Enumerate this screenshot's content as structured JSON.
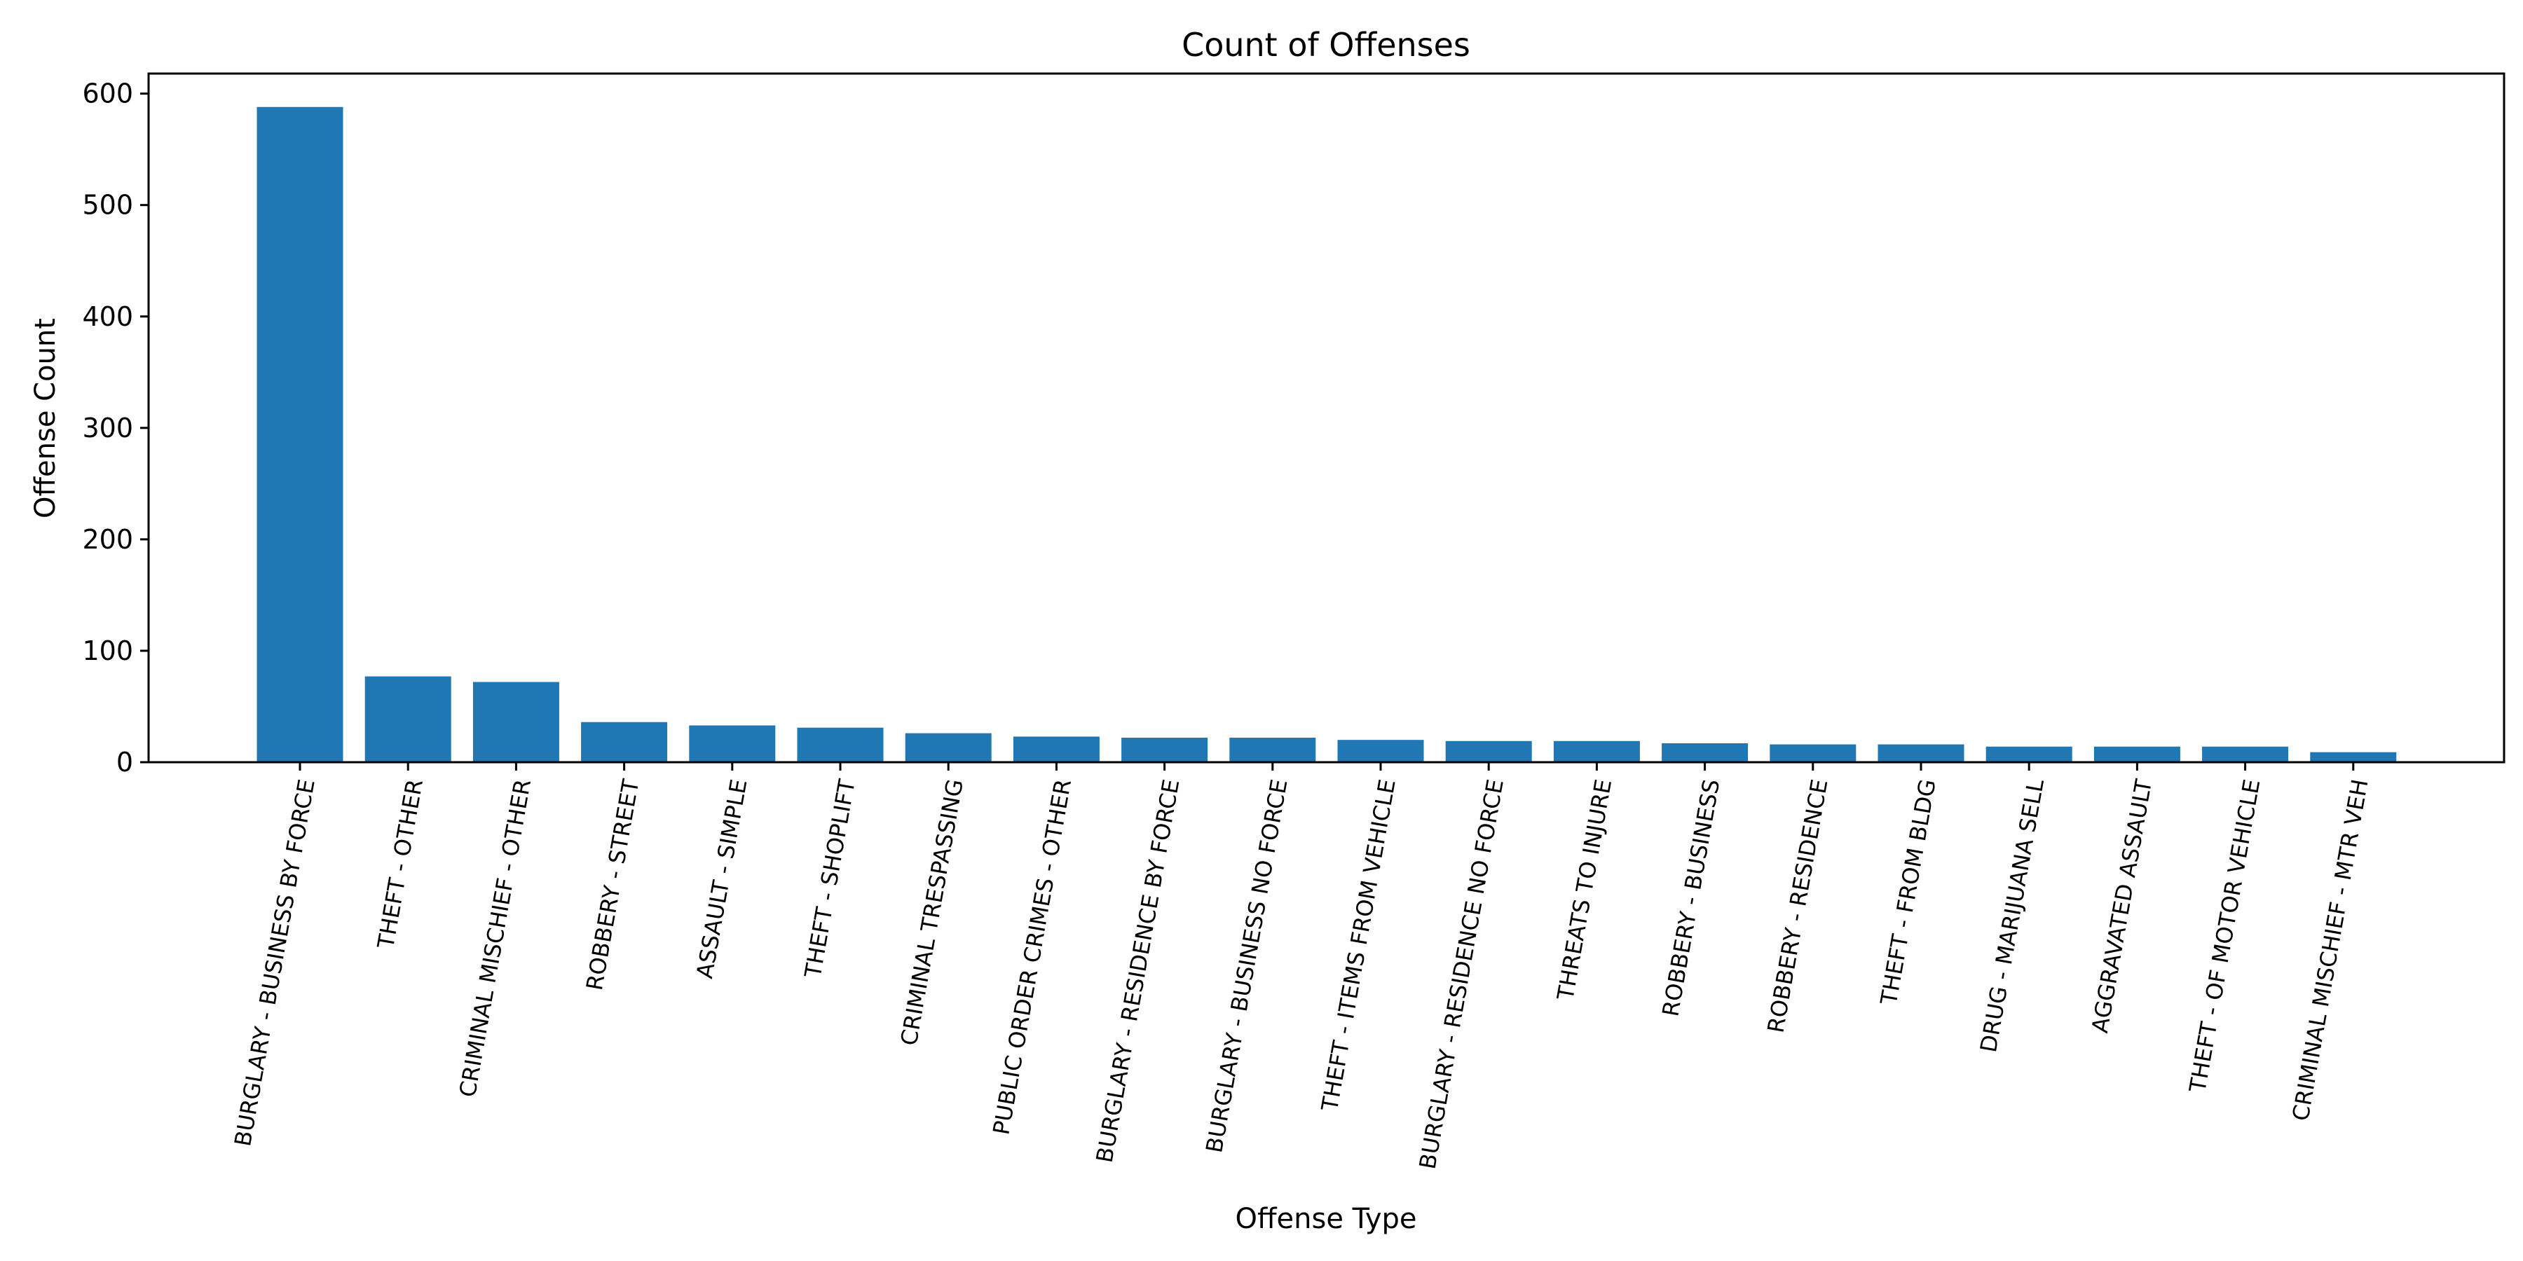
{
  "chart_data": {
    "type": "bar",
    "title": "Count of Offenses",
    "xlabel": "Offense Type",
    "ylabel": "Offense Count",
    "ylim": [
      0,
      618
    ],
    "yticks": [
      0,
      100,
      200,
      300,
      400,
      500,
      600
    ],
    "grid": false,
    "bar_color": "#1f77b4",
    "categories": [
      "BURGLARY - BUSINESS BY FORCE",
      "THEFT - OTHER",
      "CRIMINAL MISCHIEF - OTHER",
      "ROBBERY - STREET",
      "ASSAULT - SIMPLE",
      "THEFT - SHOPLIFT",
      "CRIMINAL TRESPASSING",
      "PUBLIC ORDER CRIMES - OTHER",
      "BURGLARY - RESIDENCE BY FORCE",
      "BURGLARY - BUSINESS NO FORCE",
      "THEFT - ITEMS FROM VEHICLE",
      "BURGLARY - RESIDENCE NO FORCE",
      "THREATS TO INJURE",
      "ROBBERY - BUSINESS",
      "ROBBERY - RESIDENCE",
      "THEFT - FROM BLDG",
      "DRUG - MARIJUANA SELL",
      "AGGRAVATED ASSAULT",
      "THEFT - OF MOTOR VEHICLE",
      "CRIMINAL MISCHIEF - MTR VEH"
    ],
    "values": [
      588,
      77,
      72,
      36,
      33,
      31,
      26,
      23,
      22,
      22,
      20,
      19,
      19,
      17,
      16,
      16,
      14,
      14,
      14,
      9
    ]
  }
}
